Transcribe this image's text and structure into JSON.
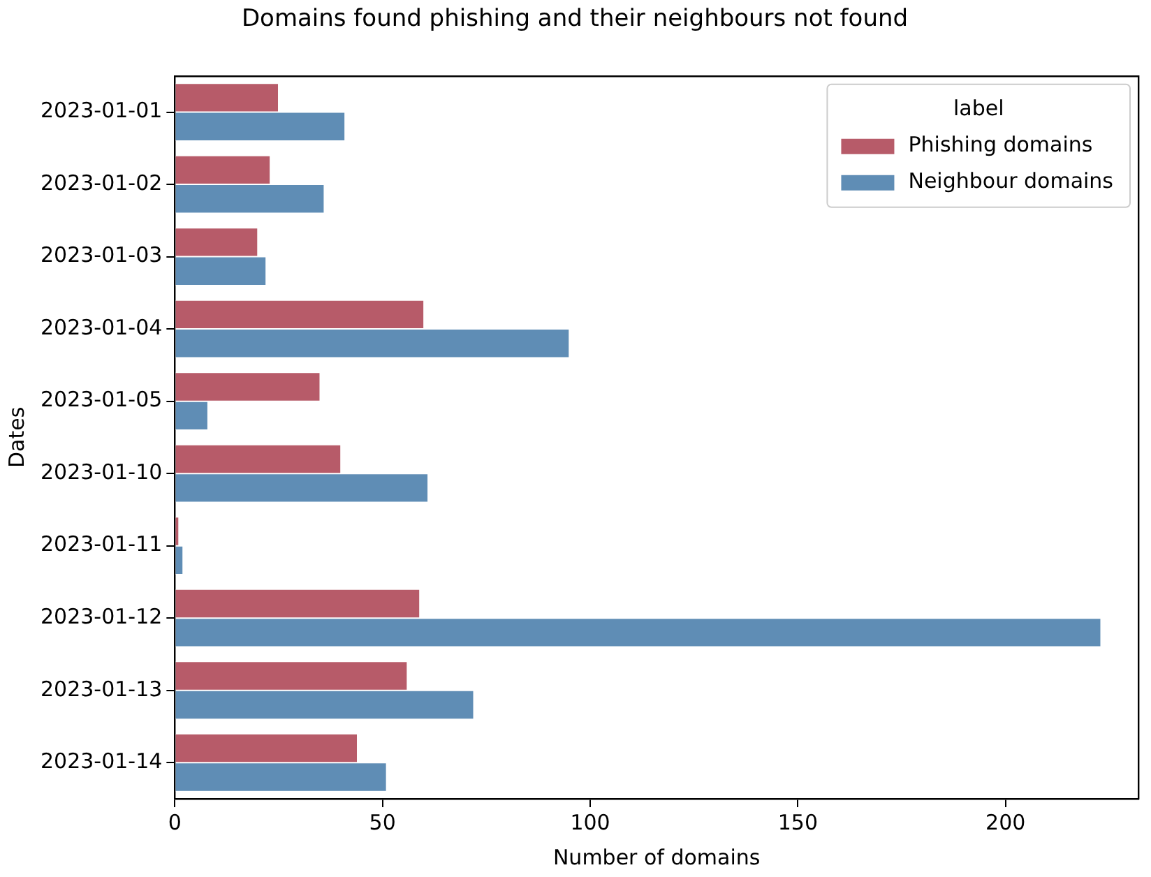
{
  "chart_data": {
    "type": "bar",
    "orientation": "horizontal",
    "title": "Domains found phishing and their neighbours not found",
    "xlabel": "Number of domains",
    "ylabel": "Dates",
    "legend_title": "label",
    "legend": "top right",
    "grid": false,
    "categories": [
      "2023-01-01",
      "2023-01-02",
      "2023-01-03",
      "2023-01-04",
      "2023-01-05",
      "2023-01-10",
      "2023-01-11",
      "2023-01-12",
      "2023-01-13",
      "2023-01-14"
    ],
    "series": [
      {
        "name": "Phishing domains",
        "color": "#b75b69",
        "values": [
          25,
          23,
          20,
          60,
          35,
          40,
          1,
          59,
          56,
          44
        ]
      },
      {
        "name": "Neighbour domains",
        "color": "#5f8db5",
        "values": [
          41,
          36,
          22,
          95,
          8,
          61,
          2,
          223,
          72,
          51
        ]
      }
    ],
    "xlim": [
      0,
      232
    ],
    "xticks": [
      0,
      50,
      100,
      150,
      200
    ]
  }
}
